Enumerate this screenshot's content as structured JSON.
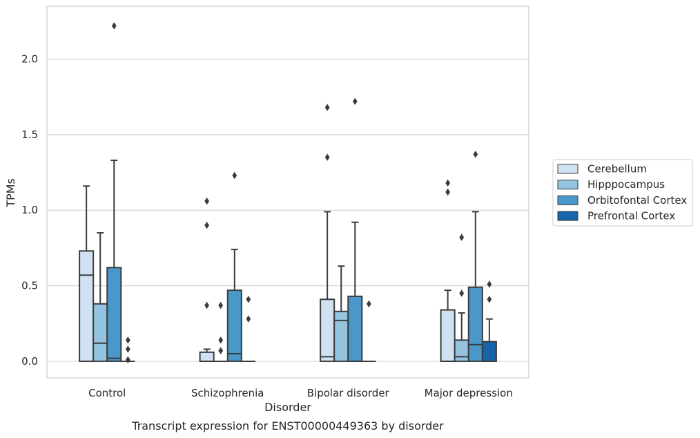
{
  "chart_data": {
    "type": "box",
    "caption": "Transcript expression for ENST00000449363 by disorder",
    "xlabel": "Disorder",
    "ylabel": "TPMs",
    "ylim": [
      -0.11,
      2.35
    ],
    "yticks": [
      0.0,
      0.5,
      1.0,
      1.5,
      2.0
    ],
    "ytick_labels": [
      "0.0",
      "0.5",
      "1.0",
      "1.5",
      "2.0"
    ],
    "grid": "horizontal",
    "legend_position": "right",
    "categories": [
      "Control",
      "Schizophrenia",
      "Bipolar disorder",
      "Major depression"
    ],
    "series": [
      {
        "name": "Cerebellum",
        "color": "#d0e1f2",
        "boxes": [
          {
            "q1": 0.0,
            "median": 0.57,
            "q3": 0.73,
            "whisker_low": 0.0,
            "whisker_high": 1.16,
            "outliers": []
          },
          {
            "q1": 0.0,
            "median": 0.0,
            "q3": 0.06,
            "whisker_low": 0.0,
            "whisker_high": 0.08,
            "outliers": [
              1.06,
              0.9,
              0.37
            ]
          },
          {
            "q1": 0.0,
            "median": 0.03,
            "q3": 0.41,
            "whisker_low": 0.0,
            "whisker_high": 0.99,
            "outliers": [
              1.68,
              1.35
            ]
          },
          {
            "q1": 0.0,
            "median": 0.0,
            "q3": 0.34,
            "whisker_low": 0.0,
            "whisker_high": 0.47,
            "outliers": [
              1.18,
              1.12
            ]
          }
        ]
      },
      {
        "name": "Hipppocampus",
        "color": "#94c4df",
        "boxes": [
          {
            "q1": 0.0,
            "median": 0.12,
            "q3": 0.38,
            "whisker_low": 0.0,
            "whisker_high": 0.85,
            "outliers": []
          },
          {
            "q1": 0.0,
            "median": 0.0,
            "q3": 0.0,
            "whisker_low": 0.0,
            "whisker_high": 0.0,
            "outliers": [
              0.37,
              0.14,
              0.07
            ]
          },
          {
            "q1": 0.0,
            "median": 0.27,
            "q3": 0.33,
            "whisker_low": 0.0,
            "whisker_high": 0.63,
            "outliers": []
          },
          {
            "q1": 0.0,
            "median": 0.03,
            "q3": 0.14,
            "whisker_low": 0.0,
            "whisker_high": 0.32,
            "outliers": [
              0.82,
              0.45
            ]
          }
        ]
      },
      {
        "name": "Orbitofontal Cortex",
        "color": "#4a98c9",
        "boxes": [
          {
            "q1": 0.0,
            "median": 0.02,
            "q3": 0.62,
            "whisker_low": 0.0,
            "whisker_high": 1.33,
            "outliers": [
              2.22
            ]
          },
          {
            "q1": 0.0,
            "median": 0.05,
            "q3": 0.47,
            "whisker_low": 0.0,
            "whisker_high": 0.74,
            "outliers": [
              1.23
            ]
          },
          {
            "q1": 0.0,
            "median": 0.0,
            "q3": 0.43,
            "whisker_low": 0.0,
            "whisker_high": 0.92,
            "outliers": [
              1.72
            ]
          },
          {
            "q1": 0.0,
            "median": 0.11,
            "q3": 0.49,
            "whisker_low": 0.0,
            "whisker_high": 0.99,
            "outliers": [
              1.37
            ]
          }
        ]
      },
      {
        "name": "Prefrontal Cortex",
        "color": "#1764ab",
        "boxes": [
          {
            "q1": 0.0,
            "median": 0.0,
            "q3": 0.0,
            "whisker_low": 0.0,
            "whisker_high": 0.0,
            "outliers": [
              0.14,
              0.08,
              0.01
            ]
          },
          {
            "q1": 0.0,
            "median": 0.0,
            "q3": 0.0,
            "whisker_low": 0.0,
            "whisker_high": 0.0,
            "outliers": [
              0.41,
              0.28
            ]
          },
          {
            "q1": 0.0,
            "median": 0.0,
            "q3": 0.0,
            "whisker_low": 0.0,
            "whisker_high": 0.0,
            "outliers": [
              0.38
            ]
          },
          {
            "q1": 0.0,
            "median": 0.0,
            "q3": 0.13,
            "whisker_low": 0.0,
            "whisker_high": 0.28,
            "outliers": [
              0.51,
              0.41
            ]
          }
        ]
      }
    ]
  }
}
